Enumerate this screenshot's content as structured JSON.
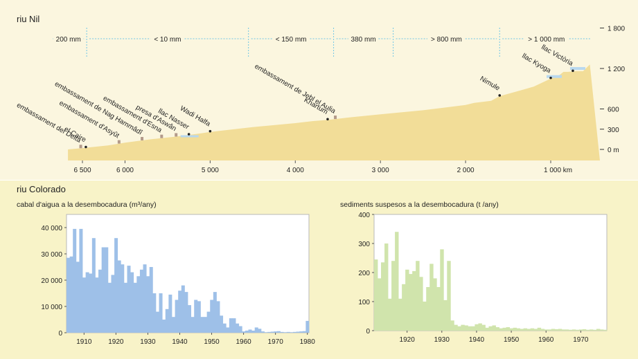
{
  "nile": {
    "title": "riu Nil",
    "distance_unit": "km",
    "distance_ticks": [
      6500,
      6000,
      5000,
      4000,
      3000,
      2000,
      1000
    ],
    "distance_tick_labels": [
      "6 500",
      "6 000",
      "5 000",
      "4 000",
      "3 000",
      "2 000",
      "1 000 km"
    ],
    "elevation_ticks": [
      0,
      300,
      600,
      1200,
      1800
    ],
    "elevation_tick_labels": [
      "0 m",
      "300",
      "600",
      "1 200",
      "1 800"
    ],
    "profile": [
      [
        6670,
        0
      ],
      [
        6500,
        20
      ],
      [
        6200,
        60
      ],
      [
        6000,
        100
      ],
      [
        5700,
        150
      ],
      [
        5400,
        190
      ],
      [
        5100,
        240
      ],
      [
        5000,
        260
      ],
      [
        4500,
        330
      ],
      [
        4000,
        390
      ],
      [
        3800,
        420
      ],
      [
        3600,
        440
      ],
      [
        3400,
        470
      ],
      [
        3000,
        520
      ],
      [
        2500,
        580
      ],
      [
        2000,
        660
      ],
      [
        1900,
        690
      ],
      [
        1700,
        720
      ],
      [
        1600,
        790
      ],
      [
        1400,
        860
      ],
      [
        1200,
        930
      ],
      [
        1000,
        1050
      ],
      [
        900,
        1100
      ],
      [
        850,
        1150
      ],
      [
        800,
        1150
      ],
      [
        700,
        1160
      ],
      [
        620,
        1160
      ],
      [
        540,
        1260
      ]
    ],
    "precip_zones": [
      "200 mm",
      "< 10 mm",
      "< 150 mm",
      "380 mm",
      "> 800 mm",
      "> 1 000 mm"
    ],
    "precip_boundaries": [
      6450,
      4550,
      3550,
      2850,
      1600
    ],
    "places": [
      {
        "name": "embassament del Delta",
        "km": 6520
      },
      {
        "name": "el Caire",
        "km": 6460
      },
      {
        "name": "embassament d'Asyût",
        "km": 6070
      },
      {
        "name": "embassament de Nag Hammâdî",
        "km": 5800
      },
      {
        "name": "embassament d'Esna",
        "km": 5570
      },
      {
        "name": "presa d'Aswân",
        "km": 5400
      },
      {
        "name": "llac Nasser",
        "km": 5250
      },
      {
        "name": "Wadi Halfa",
        "km": 5000
      },
      {
        "name": "Khartum",
        "km": 3620
      },
      {
        "name": "embassament de Jebl el Aulia",
        "km": 3530
      },
      {
        "name": "Nimule",
        "km": 1600
      },
      {
        "name": "llac Kyoga",
        "km": 1000
      },
      {
        "name": "llac Victòria",
        "km": 740
      }
    ]
  },
  "colorado": {
    "title": "riu Colorado"
  },
  "chart_data": [
    {
      "type": "area",
      "title": "riu Nil",
      "xlabel": "",
      "ylabel": "",
      "x_unit": "km",
      "y_unit": "m",
      "x": [
        6670,
        6500,
        6200,
        6000,
        5700,
        5400,
        5100,
        5000,
        4500,
        4000,
        3800,
        3600,
        3400,
        3000,
        2500,
        2000,
        1900,
        1700,
        1600,
        1400,
        1200,
        1000,
        900,
        850,
        800,
        700,
        620,
        540
      ],
      "y": [
        0,
        20,
        60,
        100,
        150,
        190,
        240,
        260,
        330,
        390,
        420,
        440,
        470,
        520,
        580,
        660,
        690,
        720,
        790,
        860,
        930,
        1050,
        1100,
        1150,
        1150,
        1160,
        1160,
        1260
      ],
      "xlim": [
        6670,
        540
      ],
      "ylim": [
        0,
        1800
      ],
      "grid": false
    },
    {
      "type": "bar",
      "title": "cabal d'aigua a la desembocadura (m³/any)",
      "xlabel": "",
      "ylabel": "",
      "categories": [
        1905,
        1906,
        1907,
        1908,
        1909,
        1910,
        1911,
        1912,
        1913,
        1914,
        1915,
        1916,
        1917,
        1918,
        1919,
        1920,
        1921,
        1922,
        1923,
        1924,
        1925,
        1926,
        1927,
        1928,
        1929,
        1930,
        1931,
        1932,
        1933,
        1934,
        1935,
        1936,
        1937,
        1938,
        1939,
        1940,
        1941,
        1942,
        1943,
        1944,
        1945,
        1946,
        1947,
        1948,
        1949,
        1950,
        1951,
        1952,
        1953,
        1954,
        1955,
        1956,
        1957,
        1958,
        1959,
        1960,
        1961,
        1962,
        1963,
        1964,
        1965,
        1966,
        1967,
        1968,
        1969,
        1970,
        1971,
        1972,
        1973,
        1974,
        1975,
        1976,
        1977,
        1978,
        1979,
        1980
      ],
      "values": [
        28500,
        29000,
        39500,
        27000,
        39500,
        21000,
        23000,
        22500,
        36000,
        21000,
        24000,
        32500,
        32500,
        19000,
        22000,
        36000,
        27500,
        26000,
        19000,
        25500,
        23000,
        19000,
        21500,
        24000,
        26000,
        21500,
        25000,
        15000,
        8000,
        15000,
        5000,
        9000,
        14500,
        6000,
        12500,
        16000,
        18000,
        15500,
        10500,
        6000,
        12500,
        12000,
        6000,
        6000,
        8000,
        12500,
        15500,
        12000,
        6500,
        3500,
        2000,
        5500,
        5500,
        3500,
        2500,
        500,
        800,
        1200,
        800,
        2000,
        1500,
        500,
        200,
        300,
        400,
        500,
        600,
        300,
        200,
        300,
        200,
        300,
        400,
        500,
        600,
        4500
      ],
      "ylim": [
        0,
        45000
      ],
      "ytick_labels": [
        "0",
        "10 000",
        "20 000",
        "30 000",
        "40 000"
      ],
      "xtick_labels": [
        "1910",
        "1920",
        "1930",
        "1940",
        "1950",
        "1960",
        "1970",
        "1980"
      ],
      "color": "#9ec0e8",
      "grid": false
    },
    {
      "type": "bar",
      "title": "sediments suspesos a la desembocadura (t /any)",
      "xlabel": "",
      "ylabel": "",
      "categories": [
        1911,
        1912,
        1913,
        1914,
        1915,
        1916,
        1917,
        1918,
        1919,
        1920,
        1921,
        1922,
        1923,
        1924,
        1925,
        1926,
        1927,
        1928,
        1929,
        1930,
        1931,
        1932,
        1933,
        1934,
        1935,
        1936,
        1937,
        1938,
        1939,
        1940,
        1941,
        1942,
        1943,
        1944,
        1945,
        1946,
        1947,
        1948,
        1949,
        1950,
        1951,
        1952,
        1953,
        1954,
        1955,
        1956,
        1957,
        1958,
        1959,
        1960,
        1961,
        1962,
        1963,
        1964,
        1965,
        1966,
        1967,
        1968,
        1969,
        1970,
        1971,
        1972,
        1973,
        1974,
        1975,
        1976,
        1977
      ],
      "values": [
        245,
        180,
        235,
        300,
        110,
        240,
        340,
        110,
        160,
        210,
        195,
        205,
        240,
        185,
        100,
        150,
        230,
        180,
        150,
        280,
        105,
        240,
        35,
        20,
        15,
        20,
        18,
        15,
        15,
        22,
        25,
        20,
        10,
        15,
        18,
        12,
        8,
        10,
        12,
        8,
        10,
        8,
        6,
        8,
        6,
        8,
        6,
        10,
        6,
        4,
        4,
        6,
        5,
        6,
        4,
        4,
        3,
        4,
        3,
        4,
        5,
        3,
        4,
        3,
        6,
        4,
        3
      ],
      "ylim": [
        0,
        400
      ],
      "ytick_labels": [
        "0",
        "100",
        "200",
        "300",
        "400"
      ],
      "xtick_labels": [
        "1920",
        "1930",
        "1940",
        "1950",
        "1960",
        "1970"
      ],
      "color": "#d0e4ac",
      "grid": false
    }
  ]
}
